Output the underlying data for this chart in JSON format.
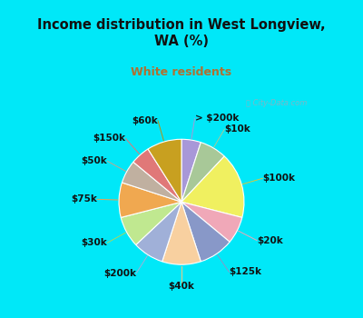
{
  "title": "Income distribution in West Longview,\nWA (%)",
  "subtitle": "White residents",
  "title_color": "#111111",
  "subtitle_color": "#b07030",
  "bg_cyan": "#00e8f8",
  "bg_chart": "#e0f0e8",
  "watermark": "ⓘ City-Data.com",
  "labels": [
    "> $200k",
    "$10k",
    "$100k",
    "$20k",
    "$125k",
    "$40k",
    "$200k",
    "$30k",
    "$75k",
    "$50k",
    "$150k",
    "$60k"
  ],
  "values": [
    5,
    7,
    17,
    7,
    9,
    10,
    8,
    8,
    9,
    6,
    5,
    9
  ],
  "colors": [
    "#a898d8",
    "#a8c898",
    "#f0f060",
    "#f0a8b8",
    "#8898c8",
    "#f8d0a0",
    "#a0b0d8",
    "#c0e890",
    "#f0a850",
    "#c0b0a0",
    "#e07878",
    "#c8a020"
  ],
  "label_fontsize": 7.5,
  "label_color": "#111111",
  "line_colors": [
    "#a898d8",
    "#a8c898",
    "#d8c840",
    "#f0a8b8",
    "#8898c8",
    "#f8c880",
    "#a0b0d8",
    "#a8d860",
    "#f0a050",
    "#c0a890",
    "#e07878",
    "#b89010"
  ]
}
